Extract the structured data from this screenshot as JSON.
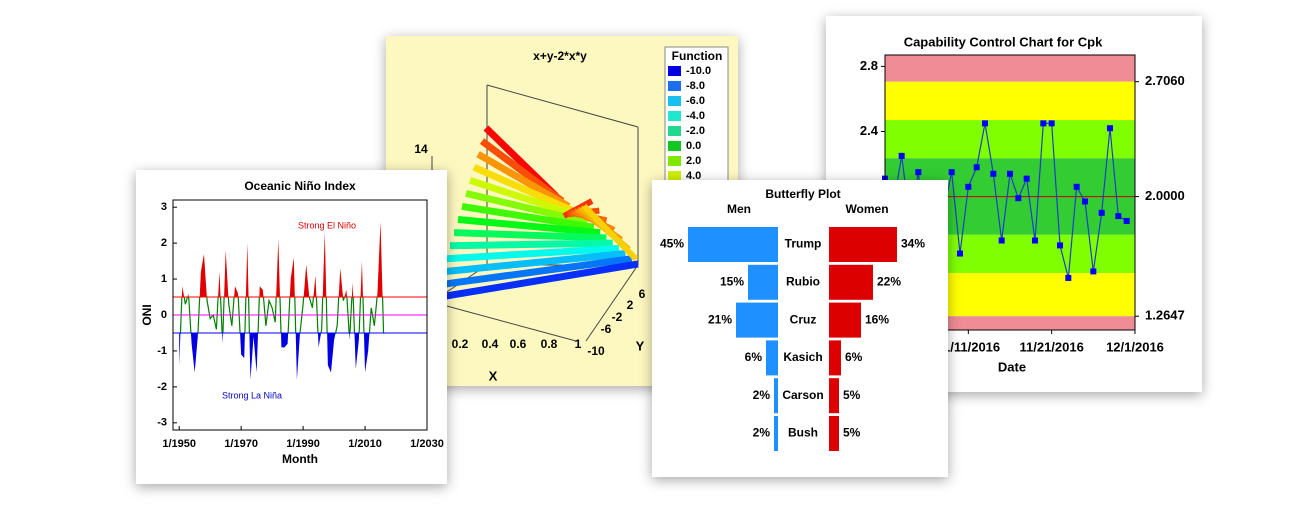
{
  "chart_data": [
    {
      "type": "line",
      "title": "Oceanic Niño Index",
      "xlabel": "Month",
      "ylabel": "ONI",
      "x": [
        "1950-01",
        "1951-01",
        "1952-01",
        "1953-01",
        "1954-01",
        "1955-01",
        "1956-01",
        "1957-01",
        "1958-01",
        "1959-01",
        "1960-01",
        "1961-01",
        "1962-01",
        "1963-01",
        "1964-01",
        "1965-01",
        "1966-01",
        "1967-01",
        "1968-01",
        "1969-01",
        "1970-01",
        "1971-01",
        "1972-01",
        "1973-01",
        "1974-01",
        "1975-01",
        "1976-01",
        "1977-01",
        "1978-01",
        "1979-01",
        "1980-01",
        "1981-01",
        "1982-01",
        "1983-01",
        "1984-01",
        "1985-01",
        "1986-01",
        "1987-01",
        "1988-01",
        "1989-01",
        "1990-01",
        "1991-01",
        "1992-01",
        "1993-01",
        "1994-01",
        "1995-01",
        "1996-01",
        "1997-01",
        "1998-01",
        "1999-01",
        "2000-01",
        "2001-01",
        "2002-01",
        "2003-01",
        "2004-01",
        "2005-01",
        "2006-01",
        "2007-01",
        "2008-01",
        "2009-01",
        "2010-01",
        "2011-01",
        "2012-01",
        "2013-01",
        "2014-01",
        "2015-01",
        "2016-01"
      ],
      "values": [
        -1.4,
        0.8,
        0.3,
        0.6,
        -0.8,
        -1.6,
        -0.6,
        1.2,
        1.7,
        0.4,
        -0.1,
        0.0,
        -0.4,
        1.2,
        -0.8,
        1.8,
        0.3,
        -0.3,
        0.8,
        0.6,
        -1.1,
        -1.2,
        2.0,
        -1.8,
        -0.6,
        -1.6,
        0.8,
        0.7,
        -0.3,
        0.4,
        0.2,
        -0.2,
        2.1,
        -0.9,
        -0.9,
        -0.8,
        1.0,
        1.6,
        -1.8,
        -0.5,
        0.3,
        1.4,
        0.5,
        0.2,
        1.1,
        -0.9,
        -0.4,
        2.3,
        -1.4,
        -1.6,
        -0.7,
        -0.3,
        1.3,
        0.4,
        0.7,
        -0.7,
        0.9,
        -1.5,
        -0.7,
        1.5,
        -1.6,
        -1.0,
        0.2,
        -0.3,
        0.6,
        2.6,
        -0.6
      ],
      "color": "#008000",
      "above_color": "#e00000",
      "below_color": "#0000e0",
      "reference_lines": [
        {
          "value": 0.5,
          "color": "#ff0000"
        },
        {
          "value": 0,
          "color": "#ff00ff"
        },
        {
          "value": -0.5,
          "color": "#0000ff"
        }
      ],
      "annotations": [
        {
          "text": "Strong El Niño",
          "color": "#e00000"
        },
        {
          "text": "Strong La Niña",
          "color": "#0000cc"
        }
      ],
      "xlim": [
        "1948-01",
        "2030-01"
      ],
      "xticks": [
        {
          "value": "1950-01",
          "label": "1/1950"
        },
        {
          "value": "1970-01",
          "label": "1/1970"
        },
        {
          "value": "1990-01",
          "label": "1/1990"
        },
        {
          "value": "2010-01",
          "label": "1/2010"
        },
        {
          "value": "2030-01",
          "label": "1/2030"
        }
      ],
      "ylim": [
        -3.2,
        3.2
      ],
      "yticks": [
        -3,
        -2,
        -1,
        0,
        1,
        2,
        3
      ]
    },
    {
      "type": "surface3d",
      "title": "x+y-2*x*y",
      "legend_title": "Function",
      "xlabel": "X",
      "ylabel": "Y",
      "levels": [
        {
          "value": -10,
          "label": "-10.0",
          "color": "#0000e0"
        },
        {
          "value": -8,
          "label": "-8.0",
          "color": "#1e6ef0"
        },
        {
          "value": -6,
          "label": "-6.0",
          "color": "#18c0f0"
        },
        {
          "value": -4,
          "label": "-4.0",
          "color": "#20e8d0"
        },
        {
          "value": -2,
          "label": "-2.0",
          "color": "#20d890"
        },
        {
          "value": 0,
          "label": "0.0",
          "color": "#10c820"
        },
        {
          "value": 2,
          "label": "2.0",
          "color": "#80e800"
        },
        {
          "value": 4,
          "label": "4.0",
          "color": "#d0f000"
        }
      ],
      "xticks": [
        0.2,
        0.4,
        0.6,
        0.8,
        1
      ],
      "yticks": [
        -10,
        -6,
        -2,
        2,
        6
      ],
      "zticks": [
        14
      ]
    },
    {
      "type": "control",
      "title": "Capability Control Chart for Cpk",
      "xlabel": "Date",
      "x": [
        "2016-11-01",
        "2016-11-02",
        "2016-11-03",
        "2016-11-04",
        "2016-11-05",
        "2016-11-06",
        "2016-11-07",
        "2016-11-08",
        "2016-11-09",
        "2016-11-10",
        "2016-11-11",
        "2016-11-12",
        "2016-11-13",
        "2016-11-14",
        "2016-11-15",
        "2016-11-16",
        "2016-11-17",
        "2016-11-18",
        "2016-11-19",
        "2016-11-20",
        "2016-11-21",
        "2016-11-22",
        "2016-11-23",
        "2016-11-24",
        "2016-11-25",
        "2016-11-26",
        "2016-11-27",
        "2016-11-28",
        "2016-11-29",
        "2016-11-30"
      ],
      "values": [
        2.11,
        1.95,
        2.25,
        1.85,
        2.15,
        1.7,
        2.05,
        1.9,
        2.15,
        1.65,
        2.06,
        2.18,
        2.45,
        2.14,
        1.73,
        2.14,
        1.99,
        2.11,
        1.73,
        2.45,
        2.45,
        1.7,
        1.5,
        2.06,
        1.97,
        1.54,
        1.9,
        2.42,
        1.88,
        1.85
      ],
      "color": "#1a3fcc",
      "marker_color": "#0000ff",
      "center_line": {
        "value": 2,
        "color": "#cc0000"
      },
      "bands": [
        {
          "from": 2.706,
          "to": 2.87,
          "color": "#f08c96"
        },
        {
          "from": 2.47,
          "to": 2.706,
          "color": "#ffff00"
        },
        {
          "from": 2.235,
          "to": 2.47,
          "color": "#80ff00"
        },
        {
          "from": 1.765,
          "to": 2.235,
          "color": "#33cc33"
        },
        {
          "from": 1.53,
          "to": 1.765,
          "color": "#80ff00"
        },
        {
          "from": 1.2647,
          "to": 1.53,
          "color": "#ffff00"
        },
        {
          "from": 1.18,
          "to": 1.2647,
          "color": "#f08c96"
        }
      ],
      "xlim": [
        "2016-11-01",
        "2016-12-01"
      ],
      "xticks": [
        {
          "value": "2016-11-11",
          "label": "11/11/2016"
        },
        {
          "value": "2016-11-21",
          "label": "11/21/2016"
        },
        {
          "value": "2016-12-01",
          "label": "12/1/2016"
        }
      ],
      "ylim": [
        1.18,
        2.87
      ],
      "yticks": [
        2.4,
        2.8
      ],
      "y2lim": [
        1.18,
        2.87
      ],
      "y2ticks": [
        {
          "value": 2.706,
          "label": "2.7060"
        },
        {
          "value": 2,
          "label": "2.0000"
        },
        {
          "value": 1.2647,
          "label": "1.2647"
        }
      ]
    },
    {
      "type": "butterfly",
      "title": "Butterfly Plot",
      "categories": [
        "Trump",
        "Rubio",
        "Cruz",
        "Kasich",
        "Carson",
        "Bush"
      ],
      "series": [
        {
          "name": "Men",
          "color": "#1e90ff",
          "values": [
            45,
            15,
            21,
            6,
            2,
            2
          ],
          "value_labels": [
            "45%",
            "15%",
            "21%",
            "6%",
            "2%",
            "2%"
          ]
        },
        {
          "name": "Women",
          "color": "#dd0000",
          "values": [
            34,
            22,
            16,
            6,
            5,
            5
          ],
          "value_labels": [
            "34%",
            "22%",
            "16%",
            "6%",
            "5%",
            "5%"
          ]
        }
      ]
    }
  ]
}
